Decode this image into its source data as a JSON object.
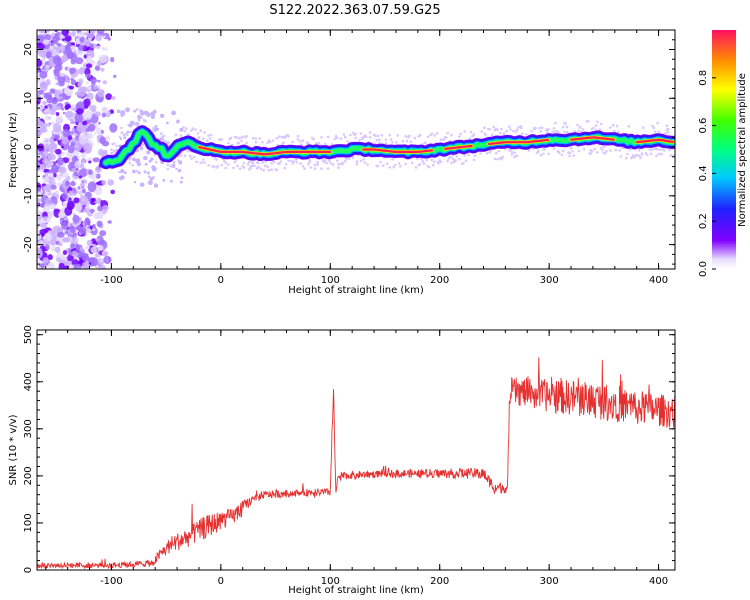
{
  "title": "S122.2022.363.07.59.G25",
  "chart_data": [
    {
      "type": "heatmap",
      "xlabel": "Height of straight line (km)",
      "ylabel": "Frequency (Hz)",
      "xlim": [
        -168,
        415
      ],
      "ylim": [
        -25,
        24
      ],
      "xticks": [
        -100,
        0,
        100,
        200,
        300,
        400
      ],
      "yticks": [
        -20,
        -10,
        0,
        10,
        20
      ],
      "colorbar": {
        "label": "Normalized spectral amplitude",
        "range": [
          0,
          1
        ],
        "ticks": [
          0.0,
          0.2,
          0.4,
          0.6,
          0.8
        ],
        "tick_labels": [
          "0.0",
          "0.2",
          "0.4",
          "0.6",
          "0.8"
        ],
        "colormap": [
          "#ffffff",
          "#dcc8ff",
          "#8000ff",
          "#2000ff",
          "#00c0ff",
          "#00ff40",
          "#ffff00",
          "#ff8000",
          "#ff2050"
        ]
      },
      "ridge": {
        "x": [
          -105,
          -95,
          -88,
          -80,
          -72,
          -65,
          -58,
          -52,
          -46,
          -40,
          -30,
          -20,
          -10,
          0,
          20,
          40,
          60,
          80,
          100,
          120,
          140,
          160,
          180,
          200,
          220,
          240,
          260,
          280,
          300,
          320,
          340,
          360,
          380,
          400,
          415
        ],
        "y": [
          -3,
          -2.5,
          -1,
          1,
          3,
          1.5,
          0,
          -1,
          -2,
          0,
          1,
          0,
          -0.5,
          -1,
          -1,
          -1.5,
          -1,
          -1,
          -1,
          -0.5,
          -0.5,
          -1,
          -1,
          -0.5,
          0,
          0.5,
          1,
          1,
          1.5,
          1.5,
          2,
          1.5,
          1,
          1.5,
          1
        ]
      },
      "noise_region_x": [
        -168,
        -95
      ]
    },
    {
      "type": "line",
      "xlabel": "Height of straight line (km)",
      "ylabel": "SNR (10 * v/v)",
      "xlim": [
        -168,
        415
      ],
      "ylim": [
        0,
        510
      ],
      "xticks": [
        -100,
        0,
        100,
        200,
        300,
        400
      ],
      "yticks": [
        0,
        100,
        200,
        300,
        400,
        500
      ],
      "color": "#e53030",
      "series": [
        {
          "x": [
            -168,
            -140,
            -100,
            -80,
            -62,
            -55,
            -45,
            -30,
            -15,
            0,
            10,
            15,
            20,
            30,
            40,
            60,
            80,
            100,
            103,
            105,
            107,
            110,
            150,
            200,
            240,
            250,
            255,
            262,
            264,
            268,
            300,
            330,
            360,
            380,
            400,
            415
          ],
          "y": [
            10,
            10,
            10,
            12,
            15,
            35,
            55,
            70,
            90,
            105,
            115,
            120,
            135,
            150,
            160,
            162,
            165,
            165,
            395,
            160,
            198,
            200,
            205,
            205,
            205,
            175,
            175,
            175,
            380,
            380,
            370,
            365,
            355,
            345,
            340,
            335
          ],
          "amp": [
            6,
            6,
            6,
            6,
            8,
            12,
            18,
            22,
            25,
            22,
            15,
            20,
            12,
            10,
            8,
            8,
            8,
            8,
            10,
            8,
            8,
            8,
            8,
            10,
            12,
            12,
            12,
            12,
            30,
            30,
            35,
            40,
            40,
            38,
            35,
            35
          ]
        }
      ]
    }
  ]
}
